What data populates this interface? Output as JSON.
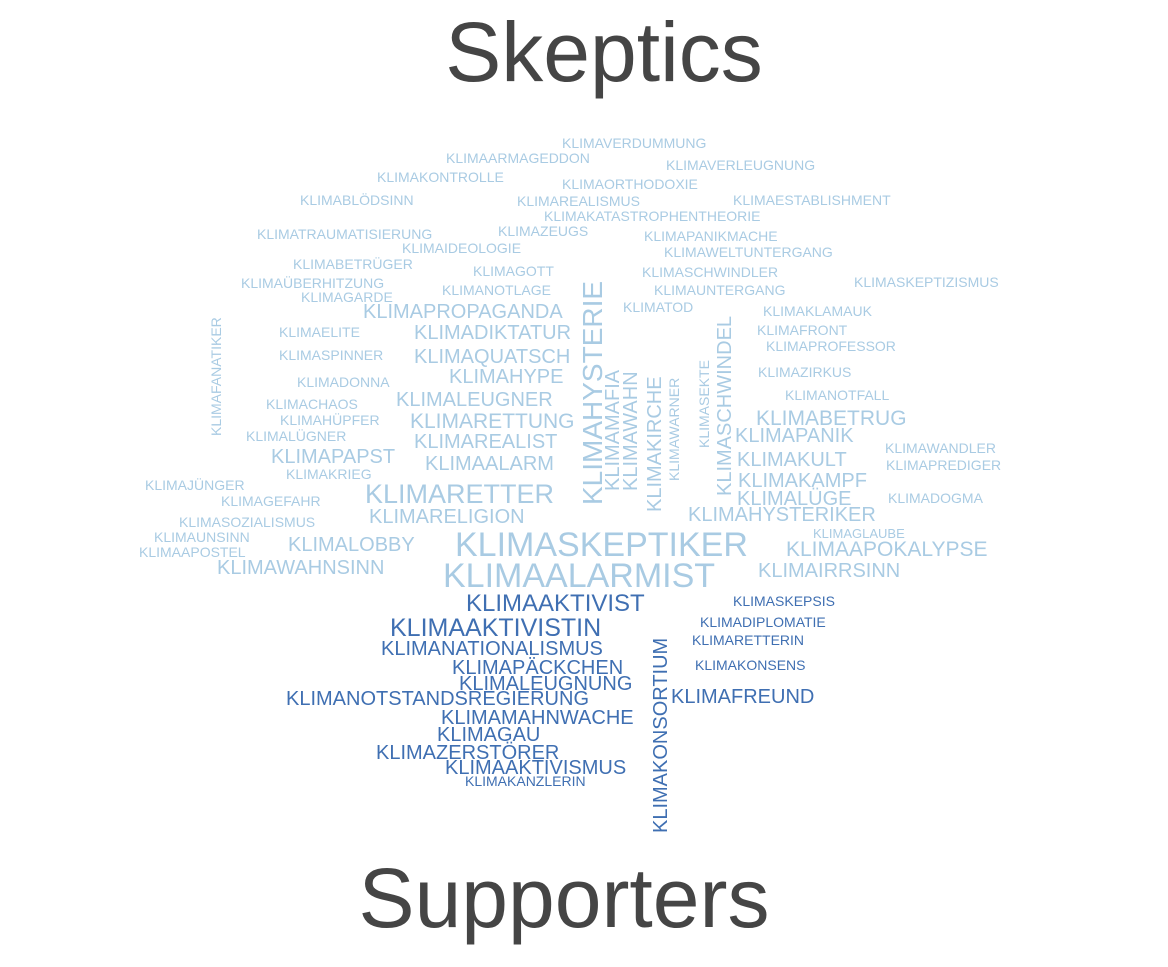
{
  "headings": {
    "top": "Skeptics",
    "bottom": "Supporters"
  },
  "colors": {
    "heading": "#454545",
    "skeptics": "#a9cbe3",
    "supporters": "#3f6fb2"
  },
  "skeptic_words": [
    "KLIMAVERDUMMUNG",
    "KLIMAARMAGEDDON",
    "KLIMAVERLEUGNUNG",
    "KLIMAKONTROLLE",
    "KLIMAORTHODOXIE",
    "KLIMABLÖDSINN",
    "KLIMAREALISMUS",
    "KLIMAESTABLISHMENT",
    "KLIMAKATASTROPHENTHEORIE",
    "KLIMATRAUMATISIERUNG",
    "KLIMAZEUGS",
    "KLIMAPANIKMACHE",
    "KLIMAIDEOLOGIE",
    "KLIMAWELTUNTERGANG",
    "KLIMABETRÜGER",
    "KLIMAGOTT",
    "KLIMASCHWINDLER",
    "KLIMAÜBERHITZUNG",
    "KLIMASKEPTIZISMUS",
    "KLIMANOTLAGE",
    "KLIMAUNTERGANG",
    "KLIMAGARDE",
    "KLIMATOD",
    "KLIMAPROPAGANDA",
    "KLIMAKLAMAUK",
    "KLIMAELITE",
    "KLIMADIKTATUR",
    "KLIMAFRONT",
    "KLIMAPROFESSOR",
    "KLIMASPINNER",
    "KLIMAQUATSCH",
    "KLIMAHYPE",
    "KLIMAZIRKUS",
    "KLIMADONNA",
    "KLIMANOTFALL",
    "KLIMALEUGNER",
    "KLIMACHAOS",
    "KLIMABETRUG",
    "KLIMAHÜPFER",
    "KLIMARETTUNG",
    "KLIMAPANIK",
    "KLIMALÜGNER",
    "KLIMAREALIST",
    "KLIMAWANDLER",
    "KLIMAPAPST",
    "KLIMAKULT",
    "KLIMAPREDIGER",
    "KLIMAALARM",
    "KLIMAKRIEG",
    "KLIMAKAMPF",
    "KLIMAJÜNGER",
    "KLIMARETTER",
    "KLIMALÜGE",
    "KLIMADOGMA",
    "KLIMAGEFAHR",
    "KLIMAHYSTERIKER",
    "KLIMASOZIALISMUS",
    "KLIMARELIGION",
    "KLIMAGLAUBE",
    "KLIMAUNSINN",
    "KLIMASKEPTIKER",
    "KLIMALOBBY",
    "KLIMAAPOKALYPSE",
    "KLIMAAPOSTEL",
    "KLIMAWAHNSINN",
    "KLIMAALARMIST",
    "KLIMAIRRSINN",
    "KLIMAFANATIKER",
    "KLIMAHYSTERIE",
    "KLIMAMAFIA",
    "KLIMAWAHN",
    "KLIMAKIRCHE",
    "KLIMAWARNER",
    "KLIMASEKTE",
    "KLIMASCHWINDEL"
  ],
  "supporter_words": [
    "KLIMAAKTIVIST",
    "KLIMASKEPSIS",
    "KLIMAAKTIVISTIN",
    "KLIMADIPLOMATIE",
    "KLIMARETTERIN",
    "KLIMANATIONALISMUS",
    "KLIMAPÄCKCHEN",
    "KLIMAKONSENS",
    "KLIMALEUGNUNG",
    "KLIMAFREUND",
    "KLIMANOTSTANDSREGIERUNG",
    "KLIMAMAHNWACHE",
    "KLIMAGAU",
    "KLIMAZERSTÖRER",
    "KLIMAAKTIVISMUS",
    "KLIMAKANZLERIN",
    "KLIMAKONSORTIUM"
  ]
}
